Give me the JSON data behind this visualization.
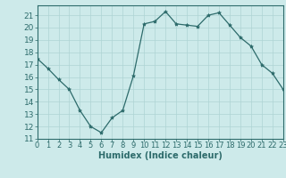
{
  "x": [
    0,
    1,
    2,
    3,
    4,
    5,
    6,
    7,
    8,
    9,
    10,
    11,
    12,
    13,
    14,
    15,
    16,
    17,
    18,
    19,
    20,
    21,
    22,
    23
  ],
  "y": [
    17.5,
    16.7,
    15.8,
    15.0,
    13.3,
    12.0,
    11.5,
    12.7,
    13.3,
    16.1,
    20.3,
    20.5,
    21.3,
    20.3,
    20.2,
    20.1,
    21.0,
    21.2,
    20.2,
    19.2,
    18.5,
    17.0,
    16.3,
    15.0
  ],
  "line_color": "#2d6b6b",
  "marker": "*",
  "marker_size": 3,
  "bg_color": "#cdeaea",
  "grid_color": "#aed4d4",
  "xlabel": "Humidex (Indice chaleur)",
  "ylim": [
    11,
    21.8
  ],
  "xlim": [
    0,
    23
  ],
  "yticks": [
    11,
    12,
    13,
    14,
    15,
    16,
    17,
    18,
    19,
    20,
    21
  ],
  "xticks": [
    0,
    1,
    2,
    3,
    4,
    5,
    6,
    7,
    8,
    9,
    10,
    11,
    12,
    13,
    14,
    15,
    16,
    17,
    18,
    19,
    20,
    21,
    22,
    23
  ],
  "xlabel_fontsize": 7,
  "tick_fontsize": 6,
  "ytick_fontsize": 6.5
}
